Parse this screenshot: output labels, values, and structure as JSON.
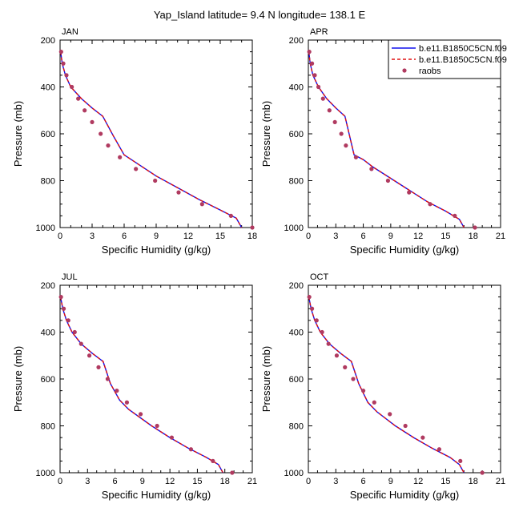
{
  "page": {
    "title": "Yap_Island  latitude= 9.4 N longitude= 138.1 E"
  },
  "legend": {
    "items": [
      {
        "label": "b.e11.B1850C5CN.f09",
        "style": "line",
        "color": "#1010ee",
        "dash": "solid"
      },
      {
        "label": "b.e11.B1850C5CN.f09",
        "style": "line",
        "color": "#e01010",
        "dash": "dashed"
      },
      {
        "label": "raobs",
        "style": "marker",
        "color": "#b03a60"
      }
    ]
  },
  "colors": {
    "model_solid": "#1010ee",
    "model_dashed": "#e01010",
    "obs": "#b03a60"
  },
  "chart_data": [
    {
      "type": "line",
      "panel": "JAN",
      "xlabel": "Specific Humidity (g/kg)",
      "ylabel": "Pressure (mb)",
      "xlim": [
        0,
        18
      ],
      "ylim": [
        200,
        1000
      ],
      "y_inverted": true,
      "xticks": [
        0,
        3,
        6,
        9,
        12,
        15,
        18
      ],
      "yticks": [
        200,
        400,
        600,
        800,
        1000
      ],
      "series": [
        {
          "style": "solid",
          "points": [
            [
              0.05,
              250
            ],
            [
              0.2,
              300
            ],
            [
              0.5,
              350
            ],
            [
              1.0,
              400
            ],
            [
              2.0,
              450
            ],
            [
              3.0,
              490
            ],
            [
              4.0,
              525
            ],
            [
              5.0,
              610
            ],
            [
              6.0,
              690
            ],
            [
              7.0,
              720
            ],
            [
              9.0,
              780
            ],
            [
              11.0,
              830
            ],
            [
              13.0,
              880
            ],
            [
              15.0,
              925
            ],
            [
              16.5,
              960
            ],
            [
              17.0,
              1000
            ]
          ]
        },
        {
          "style": "dashed",
          "points": [
            [
              0.05,
              250
            ],
            [
              0.2,
              300
            ],
            [
              0.5,
              350
            ],
            [
              1.0,
              400
            ],
            [
              2.0,
              450
            ],
            [
              3.0,
              490
            ],
            [
              4.0,
              525
            ],
            [
              5.0,
              610
            ],
            [
              6.0,
              690
            ],
            [
              7.0,
              720
            ],
            [
              9.0,
              780
            ],
            [
              11.0,
              830
            ],
            [
              13.0,
              880
            ],
            [
              15.0,
              925
            ],
            [
              16.5,
              960
            ],
            [
              17.0,
              1000
            ]
          ]
        },
        {
          "style": "markers",
          "points": [
            [
              0.1,
              250
            ],
            [
              0.3,
              300
            ],
            [
              0.6,
              350
            ],
            [
              1.1,
              400
            ],
            [
              1.7,
              450
            ],
            [
              2.3,
              500
            ],
            [
              3.0,
              550
            ],
            [
              3.8,
              600
            ],
            [
              4.5,
              650
            ],
            [
              5.6,
              700
            ],
            [
              7.1,
              750
            ],
            [
              8.9,
              800
            ],
            [
              11.1,
              850
            ],
            [
              13.3,
              900
            ],
            [
              16.0,
              950
            ],
            [
              18.0,
              1000
            ]
          ]
        }
      ]
    },
    {
      "type": "line",
      "panel": "APR",
      "xlabel": "Specific Humidity (g/kg)",
      "ylabel": "Pressure (mb)",
      "xlim": [
        0,
        21
      ],
      "ylim": [
        200,
        1000
      ],
      "y_inverted": true,
      "xticks": [
        0,
        3,
        6,
        9,
        12,
        15,
        18,
        21
      ],
      "yticks": [
        200,
        400,
        600,
        800,
        1000
      ],
      "series": [
        {
          "style": "solid",
          "points": [
            [
              0.05,
              250
            ],
            [
              0.2,
              300
            ],
            [
              0.5,
              350
            ],
            [
              1.1,
              400
            ],
            [
              2.0,
              450
            ],
            [
              3.0,
              490
            ],
            [
              4.0,
              525
            ],
            [
              5.0,
              690
            ],
            [
              6.0,
              710
            ],
            [
              7.0,
              740
            ],
            [
              9.0,
              790
            ],
            [
              11.0,
              840
            ],
            [
              13.0,
              890
            ],
            [
              15.0,
              930
            ],
            [
              16.5,
              965
            ],
            [
              17.0,
              1000
            ]
          ]
        },
        {
          "style": "dashed",
          "points": [
            [
              0.05,
              250
            ],
            [
              0.2,
              300
            ],
            [
              0.5,
              350
            ],
            [
              1.1,
              400
            ],
            [
              2.0,
              450
            ],
            [
              3.0,
              490
            ],
            [
              4.0,
              525
            ],
            [
              5.0,
              690
            ],
            [
              6.0,
              710
            ],
            [
              7.0,
              740
            ],
            [
              9.0,
              790
            ],
            [
              11.0,
              840
            ],
            [
              13.0,
              890
            ],
            [
              15.0,
              930
            ],
            [
              16.5,
              965
            ],
            [
              17.0,
              1000
            ]
          ]
        },
        {
          "style": "markers",
          "points": [
            [
              0.1,
              250
            ],
            [
              0.4,
              300
            ],
            [
              0.7,
              350
            ],
            [
              1.1,
              400
            ],
            [
              1.6,
              450
            ],
            [
              2.3,
              500
            ],
            [
              2.9,
              550
            ],
            [
              3.6,
              600
            ],
            [
              4.1,
              650
            ],
            [
              5.2,
              700
            ],
            [
              6.9,
              750
            ],
            [
              8.7,
              800
            ],
            [
              11.0,
              850
            ],
            [
              13.3,
              900
            ],
            [
              16.0,
              950
            ],
            [
              18.2,
              1000
            ]
          ]
        }
      ]
    },
    {
      "type": "line",
      "panel": "JUL",
      "xlabel": "Specific Humidity (g/kg)",
      "ylabel": "Pressure (mb)",
      "xlim": [
        0,
        21
      ],
      "ylim": [
        200,
        1000
      ],
      "y_inverted": true,
      "xticks": [
        0,
        3,
        6,
        9,
        12,
        15,
        18,
        21
      ],
      "yticks": [
        200,
        400,
        600,
        800,
        1000
      ],
      "series": [
        {
          "style": "solid",
          "points": [
            [
              0.05,
              250
            ],
            [
              0.3,
              300
            ],
            [
              0.7,
              350
            ],
            [
              1.3,
              400
            ],
            [
              2.3,
              450
            ],
            [
              3.5,
              490
            ],
            [
              4.7,
              525
            ],
            [
              5.5,
              620
            ],
            [
              6.5,
              690
            ],
            [
              7.5,
              730
            ],
            [
              10.0,
              800
            ],
            [
              12.0,
              850
            ],
            [
              14.0,
              895
            ],
            [
              16.0,
              935
            ],
            [
              17.3,
              965
            ],
            [
              17.8,
              1000
            ]
          ]
        },
        {
          "style": "dashed",
          "points": [
            [
              0.05,
              250
            ],
            [
              0.3,
              300
            ],
            [
              0.7,
              350
            ],
            [
              1.3,
              400
            ],
            [
              2.3,
              450
            ],
            [
              3.5,
              490
            ],
            [
              4.7,
              525
            ],
            [
              5.5,
              620
            ],
            [
              6.5,
              690
            ],
            [
              7.5,
              730
            ],
            [
              10.0,
              800
            ],
            [
              12.0,
              850
            ],
            [
              14.0,
              895
            ],
            [
              16.0,
              935
            ],
            [
              17.3,
              965
            ],
            [
              17.8,
              1000
            ]
          ]
        },
        {
          "style": "markers",
          "points": [
            [
              0.1,
              250
            ],
            [
              0.4,
              300
            ],
            [
              0.9,
              350
            ],
            [
              1.6,
              400
            ],
            [
              2.3,
              450
            ],
            [
              3.2,
              500
            ],
            [
              4.2,
              550
            ],
            [
              5.2,
              600
            ],
            [
              6.2,
              650
            ],
            [
              7.3,
              700
            ],
            [
              8.8,
              750
            ],
            [
              10.6,
              800
            ],
            [
              12.2,
              850
            ],
            [
              14.3,
              900
            ],
            [
              16.7,
              950
            ],
            [
              18.8,
              1000
            ]
          ]
        }
      ]
    },
    {
      "type": "line",
      "panel": "OCT",
      "xlabel": "Specific Humidity (g/kg)",
      "ylabel": "Pressure (mb)",
      "xlim": [
        0,
        21
      ],
      "ylim": [
        200,
        1000
      ],
      "y_inverted": true,
      "xticks": [
        0,
        3,
        6,
        9,
        12,
        15,
        18,
        21
      ],
      "yticks": [
        200,
        400,
        600,
        800,
        1000
      ],
      "series": [
        {
          "style": "solid",
          "points": [
            [
              0.05,
              250
            ],
            [
              0.3,
              300
            ],
            [
              0.7,
              350
            ],
            [
              1.3,
              400
            ],
            [
              2.3,
              450
            ],
            [
              3.5,
              490
            ],
            [
              4.7,
              525
            ],
            [
              5.5,
              620
            ],
            [
              6.5,
              700
            ],
            [
              7.5,
              740
            ],
            [
              9.5,
              800
            ],
            [
              11.5,
              850
            ],
            [
              13.5,
              895
            ],
            [
              15.5,
              935
            ],
            [
              16.5,
              965
            ],
            [
              17.0,
              1000
            ]
          ]
        },
        {
          "style": "dashed",
          "points": [
            [
              0.05,
              250
            ],
            [
              0.3,
              300
            ],
            [
              0.7,
              350
            ],
            [
              1.3,
              400
            ],
            [
              2.3,
              450
            ],
            [
              3.5,
              490
            ],
            [
              4.7,
              525
            ],
            [
              5.5,
              620
            ],
            [
              6.5,
              700
            ],
            [
              7.5,
              740
            ],
            [
              9.5,
              800
            ],
            [
              11.5,
              850
            ],
            [
              13.5,
              895
            ],
            [
              15.5,
              935
            ],
            [
              16.5,
              965
            ],
            [
              17.0,
              1000
            ]
          ]
        },
        {
          "style": "markers",
          "points": [
            [
              0.1,
              250
            ],
            [
              0.4,
              300
            ],
            [
              0.9,
              350
            ],
            [
              1.5,
              400
            ],
            [
              2.2,
              450
            ],
            [
              3.1,
              500
            ],
            [
              4.0,
              550
            ],
            [
              4.9,
              600
            ],
            [
              6.0,
              650
            ],
            [
              7.2,
              700
            ],
            [
              8.9,
              750
            ],
            [
              10.6,
              800
            ],
            [
              12.5,
              850
            ],
            [
              14.3,
              900
            ],
            [
              16.6,
              950
            ],
            [
              19.0,
              1000
            ]
          ]
        }
      ]
    }
  ]
}
